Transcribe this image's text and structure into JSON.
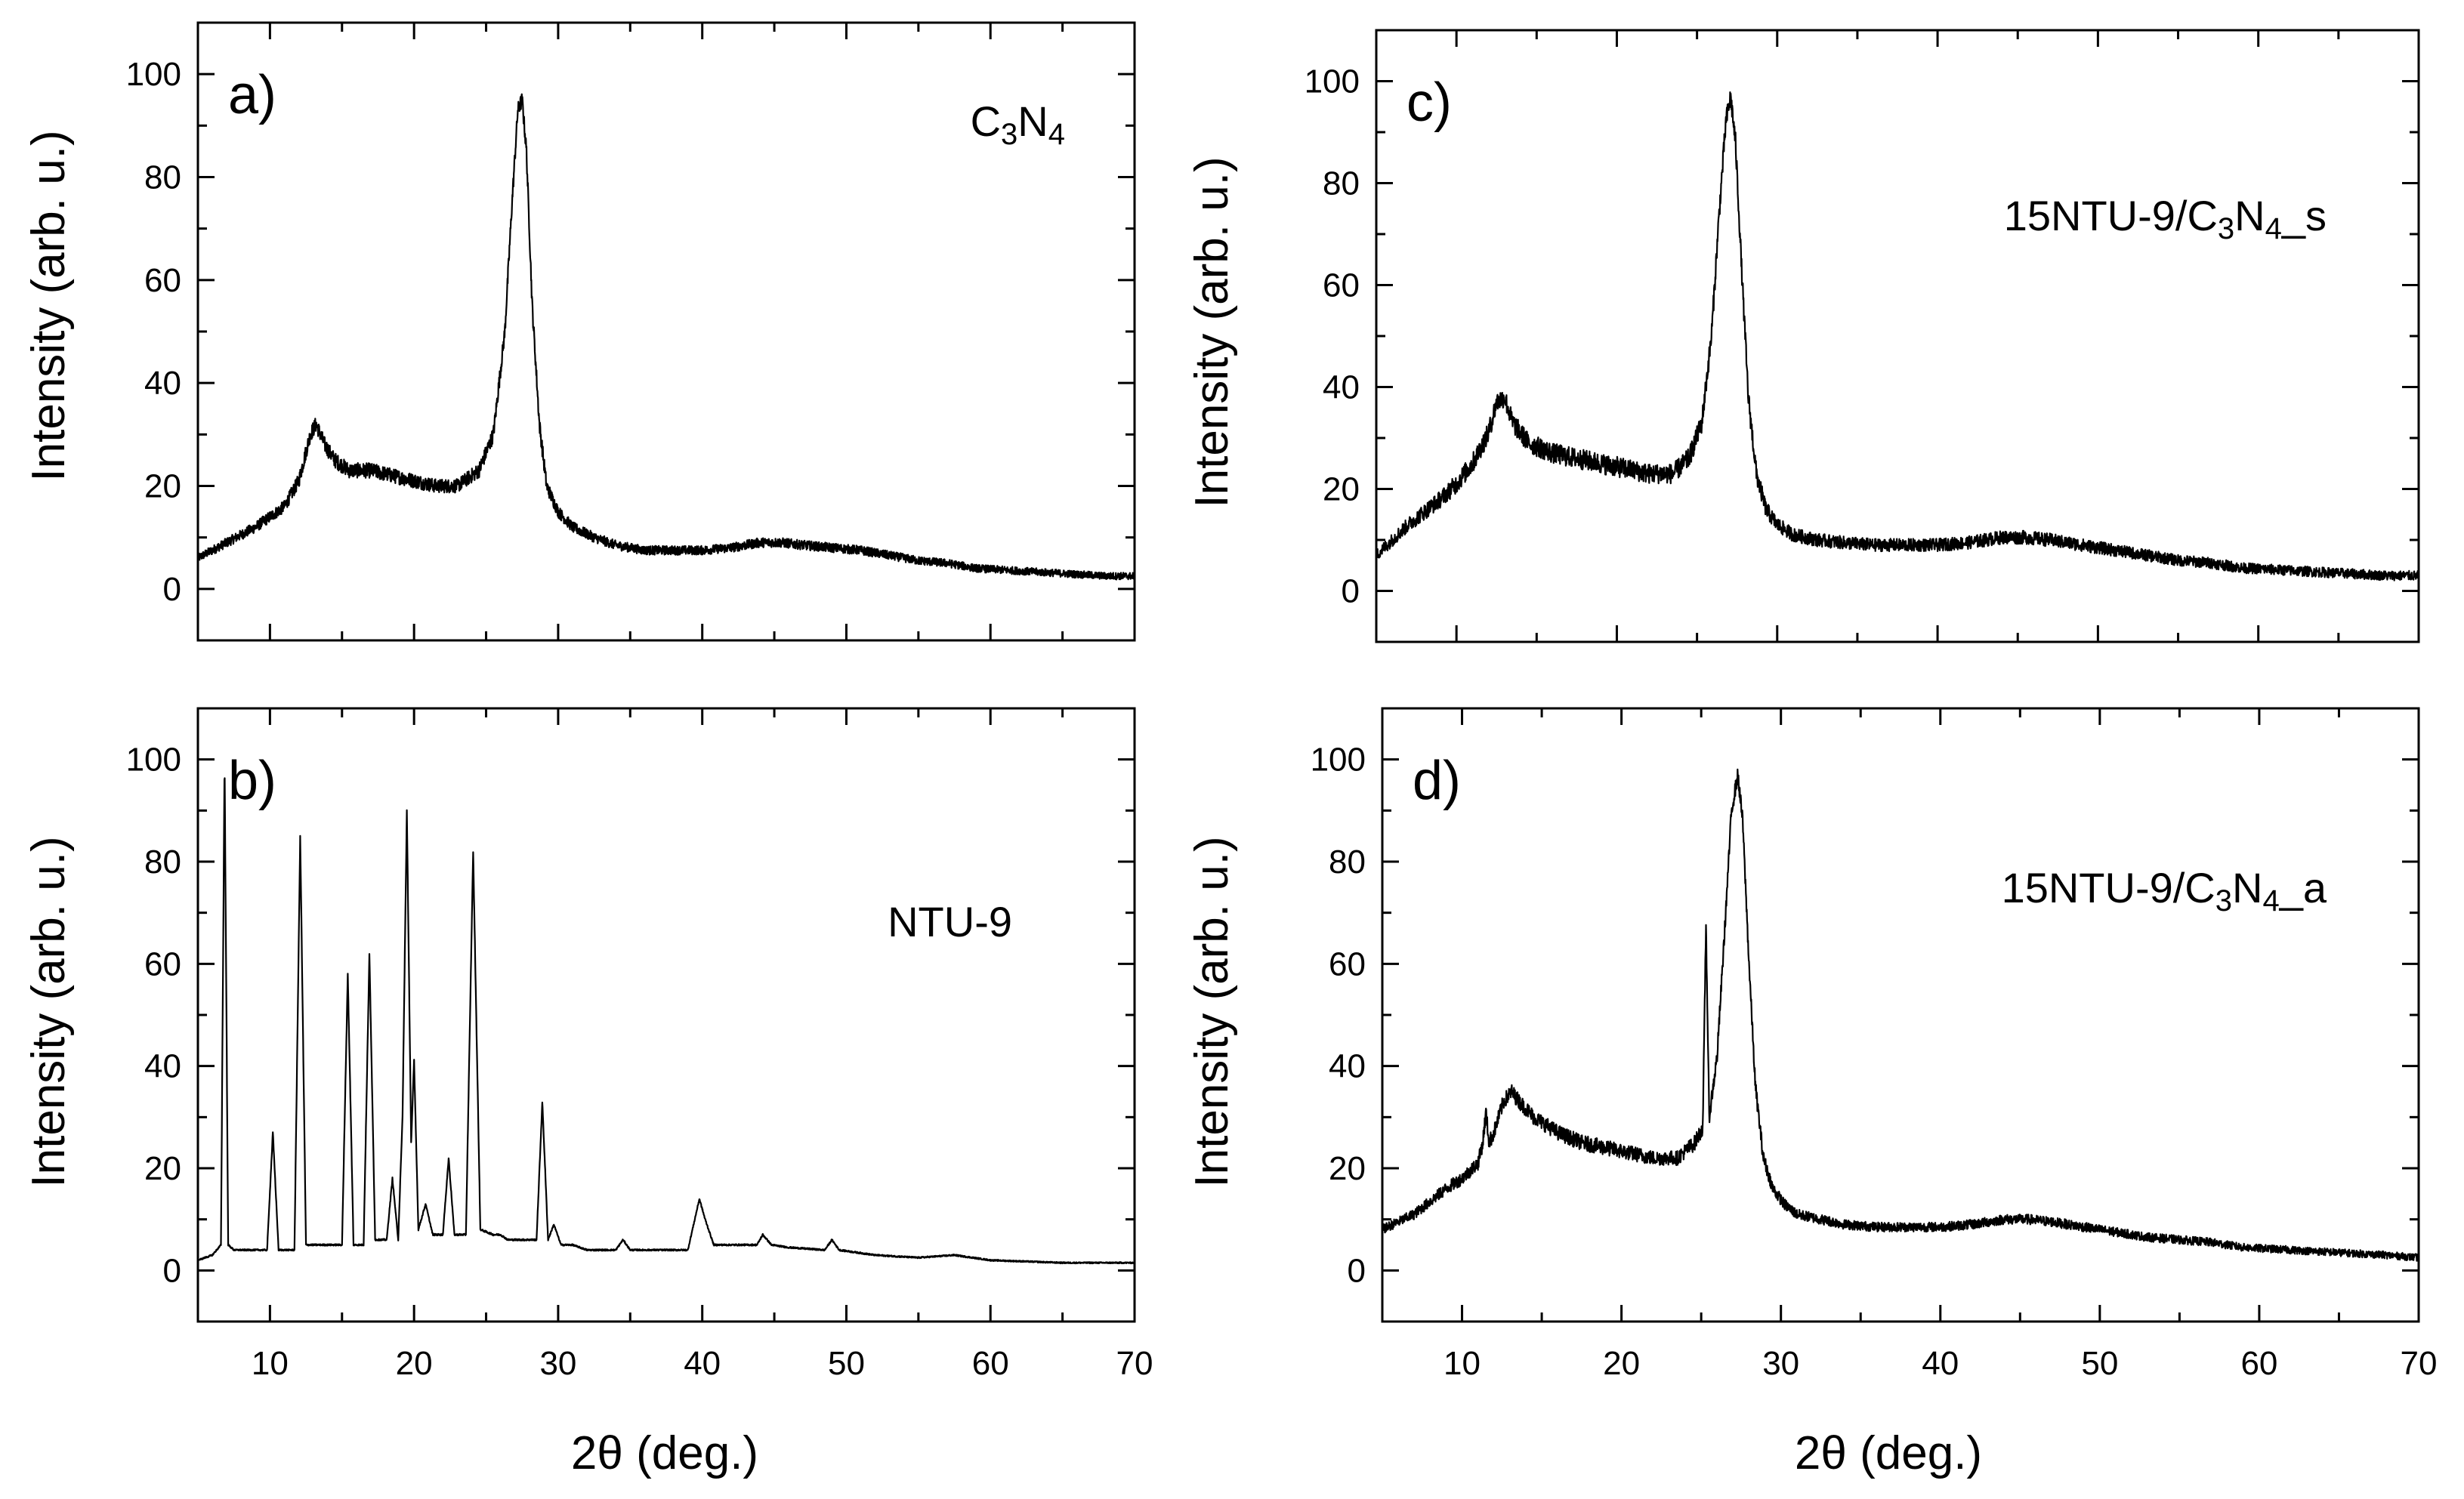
{
  "figure": {
    "x_axis_label": "2θ (deg.)",
    "y_axis_label": "Intensity (arb. u.)"
  },
  "chart_data": [
    {
      "type": "line",
      "panel": "a)",
      "label": "C3N4",
      "label_parts": [
        {
          "t": "C"
        },
        {
          "t": "3",
          "sub": true
        },
        {
          "t": "N"
        },
        {
          "t": "4",
          "sub": true
        }
      ],
      "xlabel": "",
      "ylabel": "Intensity (arb. u.)",
      "xlim": [
        5,
        70
      ],
      "ylim": [
        -10,
        110
      ],
      "xticks": [
        10,
        20,
        30,
        40,
        50,
        60,
        70
      ],
      "yticks": [
        0,
        20,
        40,
        60,
        80,
        100
      ],
      "noise": 1.5,
      "x": [
        5,
        7,
        9,
        10,
        11,
        12,
        12.8,
        13.2,
        13.8,
        14.5,
        15.5,
        17,
        18.5,
        20,
        21.5,
        23,
        24.5,
        25.5,
        26.3,
        26.8,
        27.2,
        27.5,
        27.8,
        28.2,
        28.7,
        29.2,
        30,
        31,
        32.5,
        34,
        36,
        38,
        40,
        42,
        44,
        45.5,
        47,
        49,
        51,
        53,
        55,
        57,
        59,
        62,
        65,
        68,
        70
      ],
      "y": [
        6,
        9,
        12,
        14,
        16,
        21,
        30,
        32,
        28,
        25,
        23,
        23,
        22,
        21,
        20,
        20,
        23,
        30,
        50,
        75,
        93,
        95,
        85,
        55,
        32,
        20,
        15,
        12,
        10,
        8.5,
        7.5,
        7.5,
        7.5,
        8,
        9,
        9,
        8.5,
        8,
        7.5,
        6.5,
        5.5,
        5,
        4,
        3.5,
        3,
        2.5,
        2.5
      ]
    },
    {
      "type": "line",
      "panel": "b)",
      "label": "NTU-9",
      "label_parts": [
        {
          "t": "NTU-9"
        }
      ],
      "xlabel": "2θ (deg.)",
      "ylabel": "Intensity (arb. u.)",
      "xlim": [
        5,
        70
      ],
      "ylim": [
        -10,
        110
      ],
      "xticks": [
        10,
        20,
        30,
        40,
        50,
        60,
        70
      ],
      "yticks": [
        0,
        20,
        40,
        60,
        80,
        100
      ],
      "noise": 0.3,
      "x": [
        5,
        6,
        6.6,
        6.85,
        7.1,
        7.5,
        9.8,
        10.2,
        10.6,
        11.7,
        12.1,
        12.5,
        13,
        15,
        15.4,
        15.8,
        16.5,
        16.9,
        17.3,
        18.1,
        18.5,
        18.9,
        19.2,
        19.5,
        19.8,
        20,
        20.3,
        20.8,
        21.3,
        22,
        22.4,
        22.8,
        23.6,
        24.1,
        24.6,
        25.5,
        26,
        26.5,
        28.5,
        28.9,
        29.3,
        29.7,
        30.2,
        31,
        32,
        34,
        34.5,
        35,
        39,
        39.8,
        40.2,
        40.8,
        43.8,
        44.2,
        44.8,
        46,
        48.5,
        49,
        49.5,
        52,
        55,
        57.5,
        60,
        65,
        70
      ],
      "y": [
        2,
        3,
        5,
        100,
        5,
        4,
        4,
        27,
        4,
        4,
        85,
        5,
        5,
        5,
        58,
        5,
        5,
        62,
        6,
        6,
        18,
        6,
        30,
        90,
        25,
        41,
        8,
        13,
        7,
        7,
        22,
        7,
        7,
        82,
        8,
        7,
        7,
        6,
        6,
        33,
        6,
        9,
        5,
        5,
        4,
        4,
        6,
        4,
        4,
        14,
        10,
        5,
        5,
        7,
        5,
        4.5,
        4,
        6,
        4,
        3,
        2.5,
        3,
        2,
        1.5,
        1.5
      ]
    },
    {
      "type": "line",
      "panel": "c)",
      "label": "15NTU-9/C3N4_s",
      "label_parts": [
        {
          "t": "15NTU-9/C"
        },
        {
          "t": "3",
          "sub": true
        },
        {
          "t": "N"
        },
        {
          "t": "4",
          "sub": true
        },
        {
          "t": "_s"
        }
      ],
      "xlabel": "",
      "ylabel": "Intensity (arb. u.)",
      "xlim": [
        5,
        70
      ],
      "ylim": [
        -10,
        110
      ],
      "xticks": [
        10,
        20,
        30,
        40,
        50,
        60,
        70
      ],
      "yticks": [
        0,
        20,
        40,
        60,
        80,
        100
      ],
      "noise": 2.0,
      "x": [
        5,
        7,
        9,
        10,
        11,
        12,
        12.5,
        13,
        13.5,
        14.5,
        16,
        17.5,
        19,
        20.5,
        22,
        23.5,
        24.5,
        25.3,
        25.9,
        26.4,
        26.8,
        27.1,
        27.4,
        27.8,
        28.2,
        28.7,
        29.3,
        30,
        31,
        32.5,
        34,
        36,
        38,
        40,
        42,
        44,
        45.5,
        47,
        49,
        51,
        53,
        55,
        57,
        59,
        62,
        65,
        68,
        70
      ],
      "y": [
        7,
        13,
        18,
        21,
        25,
        31,
        37,
        38,
        33,
        29,
        27,
        26,
        25,
        24,
        23,
        23,
        26,
        33,
        50,
        75,
        92,
        97,
        88,
        62,
        38,
        23,
        16,
        13,
        11,
        10,
        9.5,
        9,
        9,
        9,
        9.5,
        10.5,
        10.5,
        10,
        9,
        8,
        7,
        6,
        5.5,
        4.5,
        4,
        3.5,
        3,
        3
      ]
    },
    {
      "type": "line",
      "panel": "d)",
      "label": "15NTU-9/C3N4_a",
      "label_parts": [
        {
          "t": "15NTU-9/C"
        },
        {
          "t": "3",
          "sub": true
        },
        {
          "t": "N"
        },
        {
          "t": "4",
          "sub": true
        },
        {
          "t": "_a"
        }
      ],
      "xlabel": "2θ (deg.)",
      "ylabel": "Intensity (arb. u.)",
      "xlim": [
        5,
        70
      ],
      "ylim": [
        -10,
        110
      ],
      "xticks": [
        10,
        20,
        30,
        40,
        50,
        60,
        70
      ],
      "yticks": [
        0,
        20,
        40,
        60,
        80,
        100
      ],
      "noise": 1.5,
      "x": [
        5,
        7,
        9,
        10,
        11,
        11.3,
        11.5,
        11.7,
        12,
        12.6,
        13.1,
        13.6,
        14.5,
        16,
        17.5,
        19,
        20.5,
        22,
        23.5,
        24.6,
        25.1,
        25.3,
        25.5,
        26,
        26.5,
        26.9,
        27.3,
        27.6,
        28,
        28.4,
        28.9,
        29.5,
        30.2,
        31,
        32.5,
        34,
        36,
        38,
        40,
        42,
        44,
        45.5,
        47,
        49,
        51,
        53,
        55,
        57,
        59,
        62,
        65,
        68,
        70
      ],
      "y": [
        8,
        11,
        16,
        18,
        21,
        25,
        31,
        25,
        27,
        33,
        35,
        33,
        30,
        27,
        25,
        24,
        23,
        22,
        22,
        25,
        28,
        68,
        30,
        42,
        68,
        90,
        97,
        88,
        60,
        36,
        22,
        16,
        13,
        11,
        10,
        9,
        8.5,
        8.5,
        8.5,
        9,
        10,
        10,
        9.5,
        8.5,
        7.5,
        6.5,
        6,
        5.5,
        4.5,
        4,
        3.5,
        3,
        2.5
      ]
    }
  ]
}
